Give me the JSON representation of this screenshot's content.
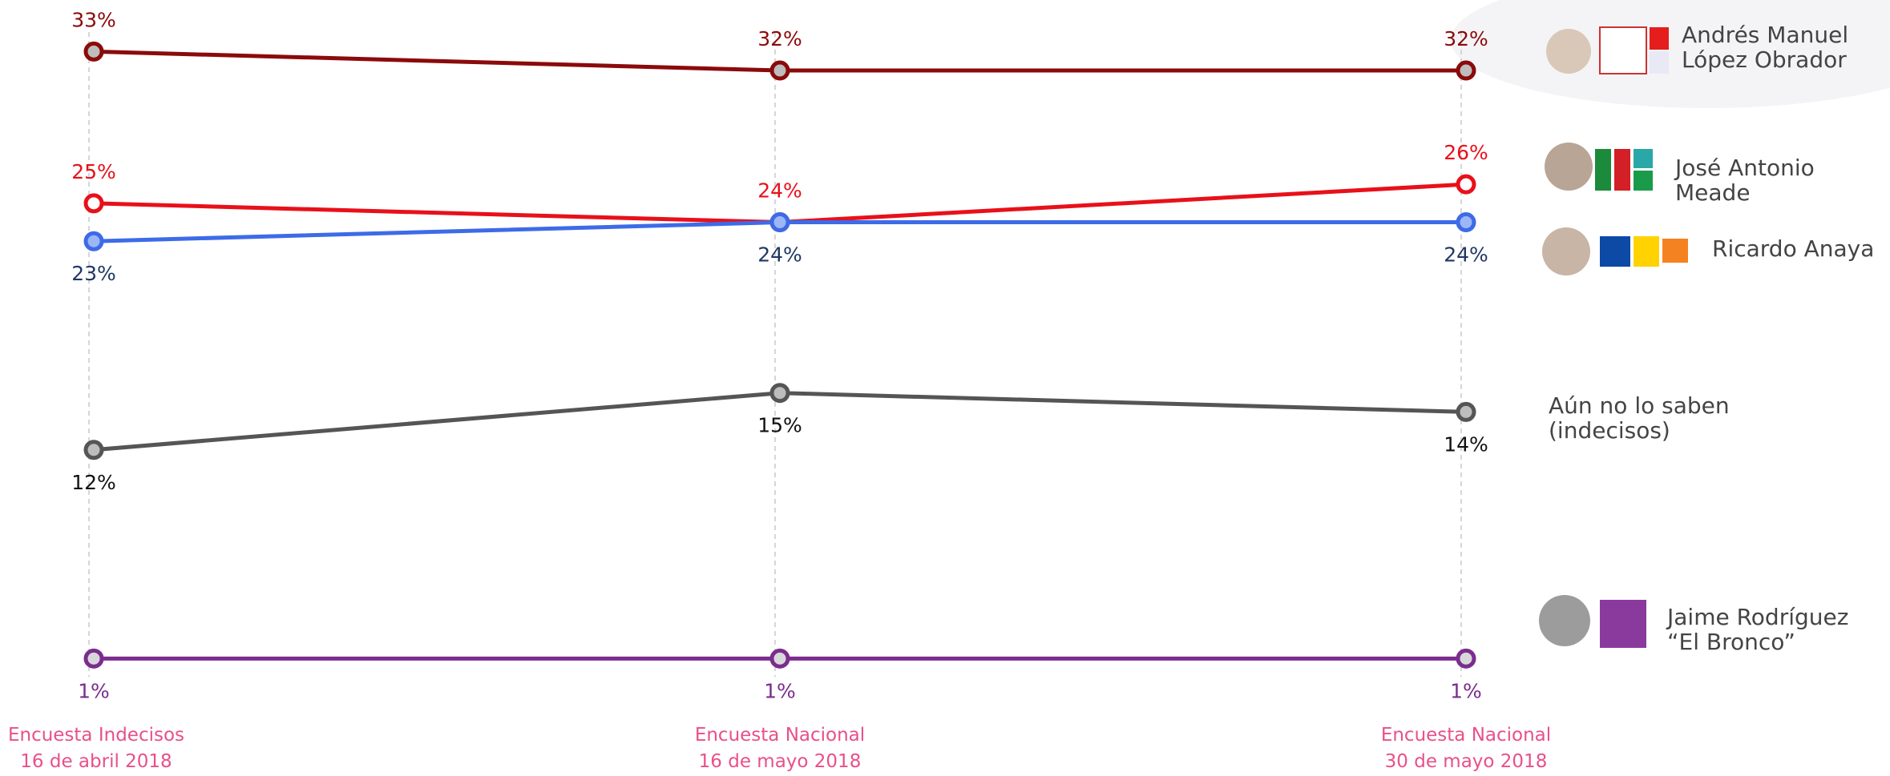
{
  "chart_data": {
    "type": "line",
    "categories": [
      "Encuesta Indecisos\n16 de abril 2018",
      "Encuesta Nacional\n16 de mayo 2018",
      "Encuesta Nacional\n30 de mayo 2018"
    ],
    "ylim": [
      0,
      35
    ],
    "series": [
      {
        "name": "Andrés Manuel\nLópez Obrador",
        "color": "#8b0a0a",
        "values": [
          33,
          32,
          32
        ],
        "value_labels": [
          "33%",
          "32%",
          "32%"
        ]
      },
      {
        "name": "José Antonio Meade",
        "color": "#e8101a",
        "values": [
          25,
          24,
          26
        ],
        "value_labels": [
          "25%",
          "24%",
          "26%"
        ]
      },
      {
        "name": "Ricardo Anaya",
        "color": "#3d6be8",
        "values": [
          23,
          24,
          24
        ],
        "value_labels": [
          "23%",
          "24%",
          "24%"
        ]
      },
      {
        "name": "Aún no lo saben\n(indecisos)",
        "color": "#555555",
        "values": [
          12,
          15,
          14
        ],
        "value_labels": [
          "12%",
          "15%",
          "14%"
        ]
      },
      {
        "name": "Jaime Rodríguez\n“El Bronco”",
        "color": "#7b2d8e",
        "values": [
          1,
          1,
          1
        ],
        "value_labels": [
          "1%",
          "1%",
          "1%"
        ]
      }
    ]
  }
}
